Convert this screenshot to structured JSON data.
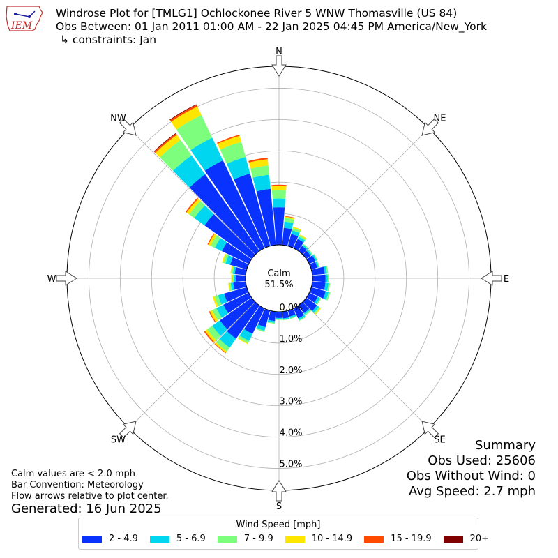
{
  "title": {
    "line1": "Windrose Plot for [TMLG1] Ochlockonee River 5 WNW Thomasville (US 84)",
    "line2": "Obs Between: 01 Jan 2011 01:00 AM - 22 Jan 2025 04:45 PM America/New_York",
    "line3": "↳ constraints: Jan"
  },
  "logo": {
    "text": "IEM",
    "icon": "iem-logo-iowa-map"
  },
  "summary": {
    "heading": "Summary",
    "obs_used": "Obs Used: 25606",
    "obs_without_wind": "Obs Without Wind: 0",
    "avg_speed": "Avg Speed: 2.7 mph"
  },
  "notes": {
    "calm_note": "Calm values are < 2.0 mph",
    "bar_convention": "Bar Convention: Meteorology",
    "flow_note": "Flow arrows relative to plot center."
  },
  "generated": "Generated: 16 Jun 2025",
  "legend": {
    "title": "Wind Speed [mph]",
    "items": [
      {
        "label": "2 - 4.9",
        "color": "#0a32ff"
      },
      {
        "label": "5 - 6.9",
        "color": "#00d6f0"
      },
      {
        "label": "7 - 9.9",
        "color": "#7dff7d"
      },
      {
        "label": "10 - 14.9",
        "color": "#ffe600"
      },
      {
        "label": "15 - 19.9",
        "color": "#ff4a00"
      },
      {
        "label": "20+",
        "color": "#800000"
      }
    ]
  },
  "chart_data": {
    "type": "windrose",
    "calm": {
      "label": "Calm",
      "value": "51.5%"
    },
    "radial_ticks": [
      "0.0%",
      "1.0%",
      "2.0%",
      "3.0%",
      "4.0%",
      "5.0%"
    ],
    "radial_max": 5.0,
    "direction_labels": [
      "N",
      "NE",
      "E",
      "SE",
      "S",
      "SW",
      "W",
      "NW"
    ],
    "bins": [
      "2 - 4.9",
      "5 - 6.9",
      "7 - 9.9",
      "10 - 14.9",
      "15 - 19.9",
      "20+"
    ],
    "sectors": [
      {
        "dir": 0,
        "values": [
          1.2,
          0.28,
          0.28,
          0.12,
          0.04,
          0.0
        ]
      },
      {
        "dir": 10,
        "values": [
          0.55,
          0.2,
          0.12,
          0.04,
          0.02,
          0.0
        ]
      },
      {
        "dir": 20,
        "values": [
          0.4,
          0.12,
          0.08,
          0.04,
          0.0,
          0.0
        ]
      },
      {
        "dir": 30,
        "values": [
          0.32,
          0.08,
          0.05,
          0.03,
          0.0,
          0.0
        ]
      },
      {
        "dir": 40,
        "values": [
          0.2,
          0.05,
          0.03,
          0.0,
          0.0,
          0.0
        ]
      },
      {
        "dir": 50,
        "values": [
          0.17,
          0.05,
          0.03,
          0.0,
          0.0,
          0.0
        ]
      },
      {
        "dir": 60,
        "values": [
          0.22,
          0.05,
          0.03,
          0.0,
          0.0,
          0.0
        ]
      },
      {
        "dir": 70,
        "values": [
          0.2,
          0.05,
          0.03,
          0.0,
          0.0,
          0.0
        ]
      },
      {
        "dir": 80,
        "values": [
          0.4,
          0.07,
          0.04,
          0.0,
          0.0,
          0.0
        ]
      },
      {
        "dir": 90,
        "values": [
          0.42,
          0.07,
          0.04,
          0.0,
          0.0,
          0.0
        ]
      },
      {
        "dir": 100,
        "values": [
          0.42,
          0.1,
          0.05,
          0.0,
          0.0,
          0.0
        ]
      },
      {
        "dir": 110,
        "values": [
          0.48,
          0.1,
          0.05,
          0.0,
          0.0,
          0.0
        ]
      },
      {
        "dir": 120,
        "values": [
          0.3,
          0.08,
          0.04,
          0.0,
          0.0,
          0.0
        ]
      },
      {
        "dir": 130,
        "values": [
          0.42,
          0.08,
          0.05,
          0.03,
          0.0,
          0.0
        ]
      },
      {
        "dir": 140,
        "values": [
          0.3,
          0.05,
          0.04,
          0.0,
          0.0,
          0.0
        ]
      },
      {
        "dir": 150,
        "values": [
          0.35,
          0.06,
          0.03,
          0.0,
          0.0,
          0.0
        ]
      },
      {
        "dir": 160,
        "values": [
          0.2,
          0.05,
          0.03,
          0.0,
          0.0,
          0.0
        ]
      },
      {
        "dir": 170,
        "values": [
          0.22,
          0.04,
          0.02,
          0.0,
          0.0,
          0.0
        ]
      },
      {
        "dir": 180,
        "values": [
          0.2,
          0.04,
          0.02,
          0.0,
          0.0,
          0.0
        ]
      },
      {
        "dir": 190,
        "values": [
          0.3,
          0.06,
          0.03,
          0.0,
          0.0,
          0.0
        ]
      },
      {
        "dir": 200,
        "values": [
          0.55,
          0.12,
          0.04,
          0.0,
          0.0,
          0.0
        ]
      },
      {
        "dir": 210,
        "values": [
          0.9,
          0.25,
          0.08,
          0.03,
          0.0,
          0.0
        ]
      },
      {
        "dir": 220,
        "values": [
          1.3,
          0.35,
          0.15,
          0.05,
          0.02,
          0.0
        ]
      },
      {
        "dir": 230,
        "values": [
          1.25,
          0.3,
          0.2,
          0.08,
          0.04,
          0.0
        ]
      },
      {
        "dir": 240,
        "values": [
          0.9,
          0.25,
          0.15,
          0.08,
          0.03,
          0.0
        ]
      },
      {
        "dir": 250,
        "values": [
          0.75,
          0.2,
          0.12,
          0.06,
          0.0,
          0.0
        ]
      },
      {
        "dir": 260,
        "values": [
          0.4,
          0.08,
          0.05,
          0.03,
          0.0,
          0.0
        ]
      },
      {
        "dir": 270,
        "values": [
          0.32,
          0.06,
          0.05,
          0.03,
          0.0,
          0.0
        ]
      },
      {
        "dir": 280,
        "values": [
          0.35,
          0.06,
          0.05,
          0.03,
          0.0,
          0.0
        ]
      },
      {
        "dir": 290,
        "values": [
          0.55,
          0.15,
          0.08,
          0.04,
          0.0,
          0.0
        ]
      },
      {
        "dir": 300,
        "values": [
          0.95,
          0.25,
          0.15,
          0.08,
          0.03,
          0.0
        ]
      },
      {
        "dir": 310,
        "values": [
          1.85,
          0.4,
          0.2,
          0.1,
          0.04,
          0.0
        ]
      },
      {
        "dir": 320,
        "values": [
          3.0,
          0.75,
          0.6,
          0.2,
          0.05,
          0.02
        ]
      },
      {
        "dir": 330,
        "values": [
          3.1,
          0.8,
          0.8,
          0.3,
          0.06,
          0.02
        ]
      },
      {
        "dir": 340,
        "values": [
          2.4,
          0.55,
          0.5,
          0.2,
          0.04,
          0.0
        ]
      },
      {
        "dir": 350,
        "values": [
          1.8,
          0.45,
          0.3,
          0.2,
          0.05,
          0.0
        ]
      }
    ]
  }
}
